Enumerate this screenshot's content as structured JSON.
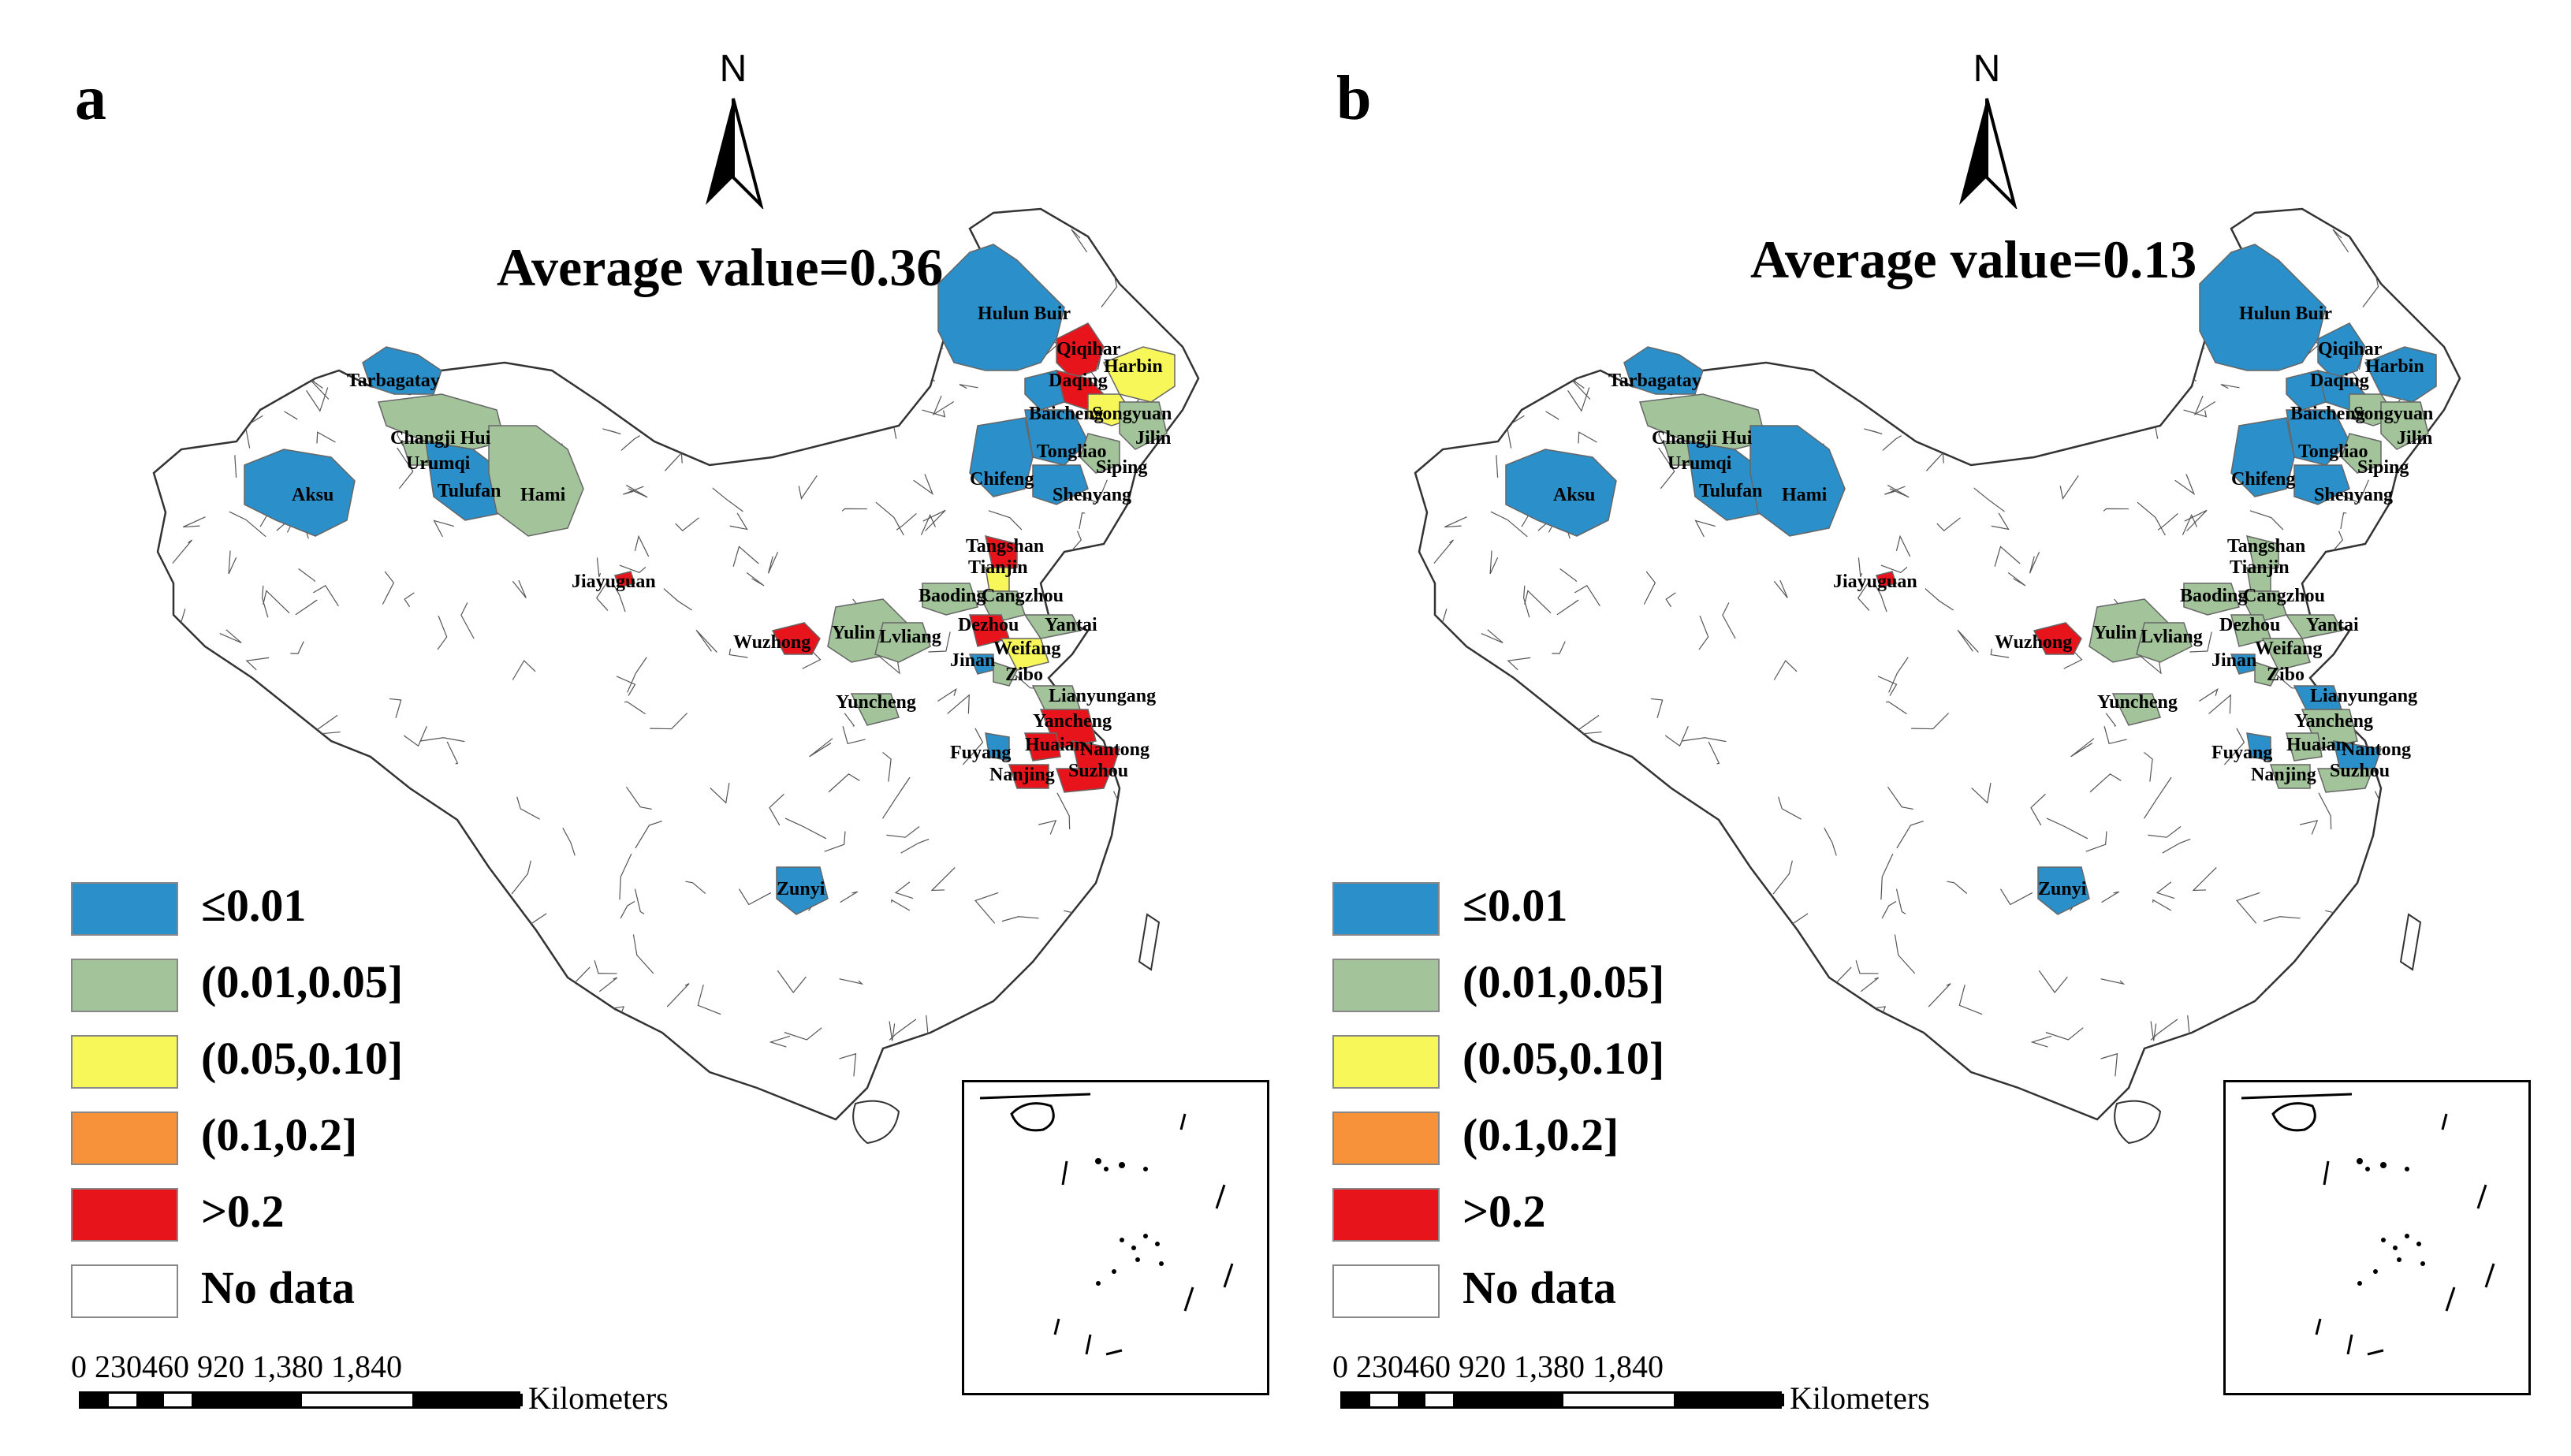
{
  "panels": [
    {
      "label": "a",
      "north": "N",
      "average": "Average value=0.36",
      "cities": [
        {
          "name": "Hulun Buir",
          "cls": "blue"
        },
        {
          "name": "Qiqihar",
          "cls": "red"
        },
        {
          "name": "Daqing",
          "cls": "red"
        },
        {
          "name": "Harbin",
          "cls": "yellow"
        },
        {
          "name": "Baicheng",
          "cls": "blue"
        },
        {
          "name": "Songyuan",
          "cls": "yellow"
        },
        {
          "name": "Jilin",
          "cls": "green"
        },
        {
          "name": "Tongliao",
          "cls": "blue"
        },
        {
          "name": "Siping",
          "cls": "green"
        },
        {
          "name": "Chifeng",
          "cls": "blue"
        },
        {
          "name": "Shenyang",
          "cls": "blue"
        },
        {
          "name": "Tarbagatay",
          "cls": "blue"
        },
        {
          "name": "Changji Hui",
          "cls": "green"
        },
        {
          "name": "Urumqi",
          "cls": "green"
        },
        {
          "name": "Aksu",
          "cls": "blue"
        },
        {
          "name": "Tulufan",
          "cls": "blue"
        },
        {
          "name": "Hami",
          "cls": "green"
        },
        {
          "name": "Jiayuguan",
          "cls": "red"
        },
        {
          "name": "Tangshan",
          "cls": "red"
        },
        {
          "name": "Tianjin",
          "cls": "yellow"
        },
        {
          "name": "Baoding",
          "cls": "green"
        },
        {
          "name": "Cangzhou",
          "cls": "green"
        },
        {
          "name": "Dezhou",
          "cls": "red"
        },
        {
          "name": "Yantai",
          "cls": "green"
        },
        {
          "name": "Wuzhong",
          "cls": "red"
        },
        {
          "name": "Yulin",
          "cls": "green"
        },
        {
          "name": "Lvliang",
          "cls": "green"
        },
        {
          "name": "Weifang",
          "cls": "yellow"
        },
        {
          "name": "Jinan",
          "cls": "blue"
        },
        {
          "name": "Zibo",
          "cls": "green"
        },
        {
          "name": "Lianyungang",
          "cls": "green"
        },
        {
          "name": "Yuncheng",
          "cls": "green"
        },
        {
          "name": "Yancheng",
          "cls": "red"
        },
        {
          "name": "Huaian",
          "cls": "red"
        },
        {
          "name": "Nantong",
          "cls": "red"
        },
        {
          "name": "Fuyang",
          "cls": "blue"
        },
        {
          "name": "Suzhou",
          "cls": "red"
        },
        {
          "name": "Nanjing",
          "cls": "red"
        },
        {
          "name": "Zunyi",
          "cls": "blue"
        }
      ]
    },
    {
      "label": "b",
      "north": "N",
      "average": "Average value=0.13",
      "cities": [
        {
          "name": "Hulun Buir",
          "cls": "blue"
        },
        {
          "name": "Qiqihar",
          "cls": "blue"
        },
        {
          "name": "Daqing",
          "cls": "blue"
        },
        {
          "name": "Harbin",
          "cls": "blue"
        },
        {
          "name": "Baicheng",
          "cls": "blue"
        },
        {
          "name": "Songyuan",
          "cls": "green"
        },
        {
          "name": "Jilin",
          "cls": "green"
        },
        {
          "name": "Tongliao",
          "cls": "blue"
        },
        {
          "name": "Siping",
          "cls": "green"
        },
        {
          "name": "Chifeng",
          "cls": "blue"
        },
        {
          "name": "Shenyang",
          "cls": "blue"
        },
        {
          "name": "Tarbagatay",
          "cls": "blue"
        },
        {
          "name": "Changji Hui",
          "cls": "green"
        },
        {
          "name": "Urumqi",
          "cls": "green"
        },
        {
          "name": "Aksu",
          "cls": "blue"
        },
        {
          "name": "Tulufan",
          "cls": "blue"
        },
        {
          "name": "Hami",
          "cls": "blue"
        },
        {
          "name": "Jiayuguan",
          "cls": "red"
        },
        {
          "name": "Tangshan",
          "cls": "green"
        },
        {
          "name": "Tianjin",
          "cls": "green"
        },
        {
          "name": "Baoding",
          "cls": "green"
        },
        {
          "name": "Cangzhou",
          "cls": "green"
        },
        {
          "name": "Dezhou",
          "cls": "green"
        },
        {
          "name": "Yantai",
          "cls": "green"
        },
        {
          "name": "Wuzhong",
          "cls": "red"
        },
        {
          "name": "Yulin",
          "cls": "green"
        },
        {
          "name": "Lvliang",
          "cls": "green"
        },
        {
          "name": "Weifang",
          "cls": "green"
        },
        {
          "name": "Jinan",
          "cls": "blue"
        },
        {
          "name": "Zibo",
          "cls": "green"
        },
        {
          "name": "Lianyungang",
          "cls": "blue"
        },
        {
          "name": "Yuncheng",
          "cls": "green"
        },
        {
          "name": "Yancheng",
          "cls": "green"
        },
        {
          "name": "Huaian",
          "cls": "green"
        },
        {
          "name": "Nantong",
          "cls": "blue"
        },
        {
          "name": "Fuyang",
          "cls": "blue"
        },
        {
          "name": "Suzhou",
          "cls": "green"
        },
        {
          "name": "Nanjing",
          "cls": "green"
        },
        {
          "name": "Zunyi",
          "cls": "blue"
        }
      ]
    }
  ],
  "legend": [
    {
      "label": "≤0.01",
      "color": "#2b8fc9"
    },
    {
      "label": "(0.01,0.05]",
      "color": "#a3c49a"
    },
    {
      "label": "(0.05,0.10]",
      "color": "#f7f75a"
    },
    {
      "label": "(0.1,0.2]",
      "color": "#f7923a"
    },
    {
      "label": ">0.2",
      "color": "#e8141c"
    },
    {
      "label": "No data",
      "color": "#ffffff"
    }
  ],
  "scale": {
    "ticks": "0  230460       920    1,380   1,840",
    "unit": "Kilometers"
  }
}
